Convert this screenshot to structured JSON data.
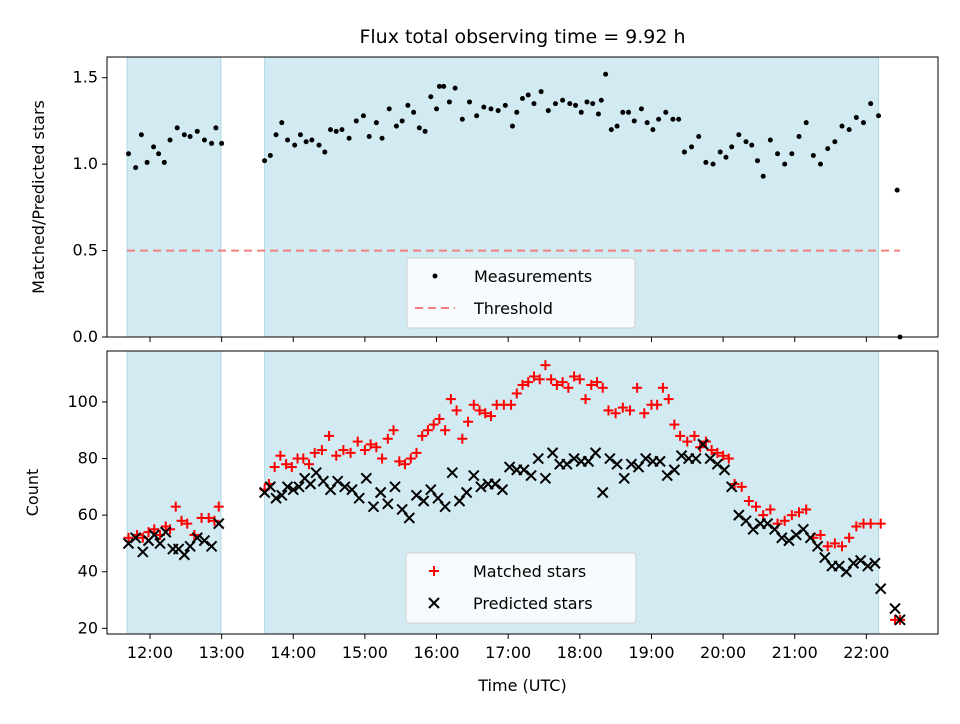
{
  "chart_data": [
    {
      "id": "ratio",
      "type": "scatter",
      "title": "Flux total observing time = 9.92 h",
      "xlabel": "",
      "ylabel": "Matched/Predicted stars",
      "ylim": [
        0,
        1.62
      ],
      "yticks": [
        0.0,
        0.5,
        1.0,
        1.5
      ],
      "ytick_labels": [
        "0.0",
        "0.5",
        "1.0",
        "1.5"
      ],
      "xlim": [
        11.4,
        23.0
      ],
      "shaded_spans": [
        [
          11.68,
          12.99
        ],
        [
          13.6,
          22.17
        ]
      ],
      "shade_color": "#add8e6",
      "threshold": {
        "name": "Threshold",
        "value": 0.5,
        "x": [
          11.68,
          22.47
        ],
        "color": "#f08080"
      },
      "legend": {
        "placement": "bottom-center",
        "entries": [
          "Measurements",
          "Threshold"
        ]
      },
      "series": [
        {
          "name": "Measurements",
          "color": "#000000",
          "marker": "dot",
          "x": [
            11.7,
            11.8,
            11.88,
            11.96,
            12.05,
            12.12,
            12.2,
            12.28,
            12.38,
            12.48,
            12.56,
            12.66,
            12.76,
            12.86,
            12.92,
            13.0,
            13.6,
            13.68,
            13.76,
            13.84,
            13.92,
            14.02,
            14.1,
            14.18,
            14.26,
            14.36,
            14.44,
            14.52,
            14.6,
            14.68,
            14.78,
            14.88,
            14.98,
            15.06,
            15.16,
            15.24,
            15.34,
            15.44,
            15.52,
            15.6,
            15.68,
            15.76,
            15.84,
            15.92,
            16.0,
            16.04,
            16.1,
            16.18,
            16.26,
            16.36,
            16.46,
            16.56,
            16.66,
            16.76,
            16.86,
            16.96,
            17.06,
            17.12,
            17.2,
            17.28,
            17.36,
            17.46,
            17.56,
            17.66,
            17.76,
            17.86,
            17.94,
            18.02,
            18.1,
            18.18,
            18.26,
            18.3,
            18.36,
            18.44,
            18.52,
            18.6,
            18.68,
            18.76,
            18.86,
            18.94,
            19.02,
            19.1,
            19.2,
            19.3,
            19.38,
            19.46,
            19.56,
            19.66,
            19.76,
            19.86,
            19.96,
            20.04,
            20.12,
            20.22,
            20.32,
            20.4,
            20.48,
            20.56,
            20.66,
            20.76,
            20.86,
            20.96,
            21.06,
            21.16,
            21.26,
            21.36,
            21.46,
            21.56,
            21.66,
            21.76,
            21.86,
            21.96,
            22.06,
            22.17,
            22.43,
            22.47
          ],
          "y": [
            1.06,
            0.98,
            1.17,
            1.01,
            1.1,
            1.06,
            1.01,
            1.14,
            1.21,
            1.17,
            1.16,
            1.19,
            1.14,
            1.12,
            1.21,
            1.12,
            1.02,
            1.05,
            1.17,
            1.24,
            1.14,
            1.11,
            1.17,
            1.13,
            1.14,
            1.11,
            1.07,
            1.2,
            1.19,
            1.2,
            1.15,
            1.25,
            1.28,
            1.16,
            1.24,
            1.15,
            1.32,
            1.22,
            1.25,
            1.34,
            1.3,
            1.21,
            1.19,
            1.39,
            1.32,
            1.45,
            1.45,
            1.36,
            1.44,
            1.26,
            1.36,
            1.28,
            1.33,
            1.32,
            1.31,
            1.34,
            1.22,
            1.3,
            1.38,
            1.4,
            1.35,
            1.42,
            1.31,
            1.35,
            1.37,
            1.35,
            1.34,
            1.3,
            1.36,
            1.35,
            1.29,
            1.37,
            1.52,
            1.2,
            1.22,
            1.3,
            1.3,
            1.25,
            1.32,
            1.24,
            1.2,
            1.26,
            1.3,
            1.26,
            1.26,
            1.07,
            1.1,
            1.16,
            1.01,
            1.0,
            1.07,
            1.04,
            1.1,
            1.17,
            1.13,
            1.11,
            1.02,
            0.93,
            1.14,
            1.06,
            1.0,
            1.06,
            1.16,
            1.24,
            1.05,
            1.0,
            1.09,
            1.13,
            1.22,
            1.2,
            1.27,
            1.24,
            1.35,
            1.28,
            0.85,
            0.0
          ]
        }
      ]
    },
    {
      "id": "counts",
      "type": "scatter",
      "title": "",
      "xlabel": "Time (UTC)",
      "ylabel": "Count",
      "ylim": [
        18,
        118
      ],
      "yticks": [
        20,
        40,
        60,
        80,
        100
      ],
      "ytick_labels": [
        "20",
        "40",
        "60",
        "80",
        "100"
      ],
      "xlim": [
        11.4,
        23.0
      ],
      "xticks": [
        12,
        13,
        14,
        15,
        16,
        17,
        18,
        19,
        20,
        21,
        22
      ],
      "xtick_labels": [
        "12:00",
        "13:00",
        "14:00",
        "15:00",
        "16:00",
        "17:00",
        "18:00",
        "19:00",
        "20:00",
        "21:00",
        "22:00"
      ],
      "shaded_spans": [
        [
          11.68,
          12.99
        ],
        [
          13.6,
          22.17
        ]
      ],
      "shade_color": "#add8e6",
      "legend": {
        "placement": "bottom-center",
        "entries": [
          "Matched stars",
          "Predicted stars"
        ]
      },
      "series": [
        {
          "name": "Matched stars",
          "color": "#ff0000",
          "marker": "plus",
          "x": [
            11.7,
            11.82,
            11.9,
            11.98,
            12.06,
            12.14,
            12.22,
            12.28,
            12.36,
            12.44,
            12.52,
            12.62,
            12.72,
            12.82,
            12.9,
            12.96,
            13.6,
            13.66,
            13.74,
            13.82,
            13.9,
            13.98,
            14.06,
            14.14,
            14.22,
            14.3,
            14.4,
            14.5,
            14.6,
            14.7,
            14.8,
            14.9,
            15.0,
            15.08,
            15.16,
            15.24,
            15.32,
            15.4,
            15.48,
            15.56,
            15.64,
            15.72,
            15.8,
            15.88,
            15.96,
            16.04,
            16.12,
            16.2,
            16.28,
            16.36,
            16.44,
            16.52,
            16.6,
            16.68,
            16.76,
            16.84,
            16.94,
            17.04,
            17.12,
            17.2,
            17.28,
            17.36,
            17.44,
            17.52,
            17.6,
            17.68,
            17.76,
            17.84,
            17.92,
            18.0,
            18.08,
            18.16,
            18.24,
            18.32,
            18.4,
            18.5,
            18.6,
            18.7,
            18.8,
            18.9,
            19.0,
            19.08,
            19.16,
            19.24,
            19.32,
            19.4,
            19.5,
            19.6,
            19.68,
            19.76,
            19.84,
            19.92,
            20.0,
            20.08,
            20.16,
            20.26,
            20.36,
            20.46,
            20.56,
            20.66,
            20.76,
            20.86,
            20.96,
            21.06,
            21.16,
            21.26,
            21.36,
            21.46,
            21.56,
            21.66,
            21.76,
            21.86,
            21.96,
            22.06,
            22.2,
            22.4,
            22.47
          ],
          "y": [
            52,
            53,
            52,
            54,
            55,
            53,
            56,
            55,
            63,
            58,
            57,
            53,
            59,
            59,
            58,
            63,
            69,
            71,
            77,
            81,
            78,
            77,
            80,
            80,
            78,
            82,
            83,
            88,
            81,
            83,
            82,
            86,
            83,
            85,
            84,
            80,
            87,
            90,
            79,
            78,
            80,
            82,
            88,
            90,
            92,
            94,
            90,
            101,
            97,
            87,
            93,
            99,
            97,
            96,
            95,
            99,
            99,
            99,
            103,
            106,
            107,
            109,
            108,
            113,
            108,
            106,
            107,
            105,
            109,
            108,
            101,
            106,
            107,
            105,
            97,
            96,
            98,
            97,
            105,
            96,
            99,
            99,
            105,
            101,
            92,
            88,
            86,
            88,
            84,
            86,
            83,
            82,
            81,
            80,
            71,
            70,
            65,
            63,
            60,
            62,
            57,
            58,
            60,
            61,
            62,
            52,
            53,
            49,
            50,
            49,
            52,
            56,
            57,
            57,
            57,
            23,
            23
          ],
          "mirror_to": []
        },
        {
          "name": "Predicted stars",
          "color": "#000000",
          "marker": "x",
          "x": [
            11.7,
            11.8,
            11.9,
            11.98,
            12.06,
            12.14,
            12.22,
            12.32,
            12.4,
            12.48,
            12.56,
            12.66,
            12.76,
            12.86,
            12.96,
            13.6,
            13.68,
            13.76,
            13.84,
            13.92,
            14.0,
            14.08,
            14.16,
            14.24,
            14.32,
            14.42,
            14.52,
            14.62,
            14.72,
            14.82,
            14.92,
            15.02,
            15.12,
            15.22,
            15.32,
            15.42,
            15.52,
            15.62,
            15.72,
            15.82,
            15.92,
            16.02,
            16.12,
            16.22,
            16.32,
            16.42,
            16.52,
            16.62,
            16.72,
            16.82,
            16.92,
            17.02,
            17.12,
            17.22,
            17.32,
            17.42,
            17.52,
            17.62,
            17.72,
            17.82,
            17.92,
            18.02,
            18.12,
            18.22,
            18.32,
            18.42,
            18.52,
            18.62,
            18.72,
            18.82,
            18.92,
            19.02,
            19.12,
            19.22,
            19.32,
            19.42,
            19.52,
            19.62,
            19.72,
            19.82,
            19.92,
            20.02,
            20.12,
            20.22,
            20.32,
            20.42,
            20.52,
            20.62,
            20.72,
            20.82,
            20.92,
            21.02,
            21.12,
            21.22,
            21.32,
            21.42,
            21.52,
            21.62,
            21.72,
            21.82,
            21.92,
            22.02,
            22.12,
            22.2,
            22.4,
            22.47
          ],
          "y": [
            50,
            52,
            47,
            51,
            53,
            50,
            54,
            48,
            48,
            46,
            49,
            52,
            51,
            49,
            57,
            68,
            70,
            66,
            67,
            70,
            69,
            70,
            73,
            71,
            75,
            72,
            69,
            72,
            70,
            69,
            66,
            73,
            63,
            68,
            64,
            70,
            62,
            59,
            67,
            65,
            69,
            66,
            63,
            75,
            65,
            68,
            74,
            70,
            71,
            71,
            69,
            77,
            76,
            76,
            74,
            80,
            73,
            82,
            78,
            78,
            80,
            79,
            79,
            82,
            68,
            80,
            78,
            73,
            78,
            77,
            80,
            79,
            79,
            74,
            76,
            81,
            80,
            80,
            85,
            80,
            78,
            76,
            70,
            60,
            58,
            55,
            57,
            57,
            55,
            52,
            51,
            53,
            55,
            52,
            49,
            45,
            42,
            42,
            40,
            43,
            44,
            42,
            43,
            34,
            27,
            23
          ],
          "mirror_to": []
        }
      ]
    }
  ]
}
